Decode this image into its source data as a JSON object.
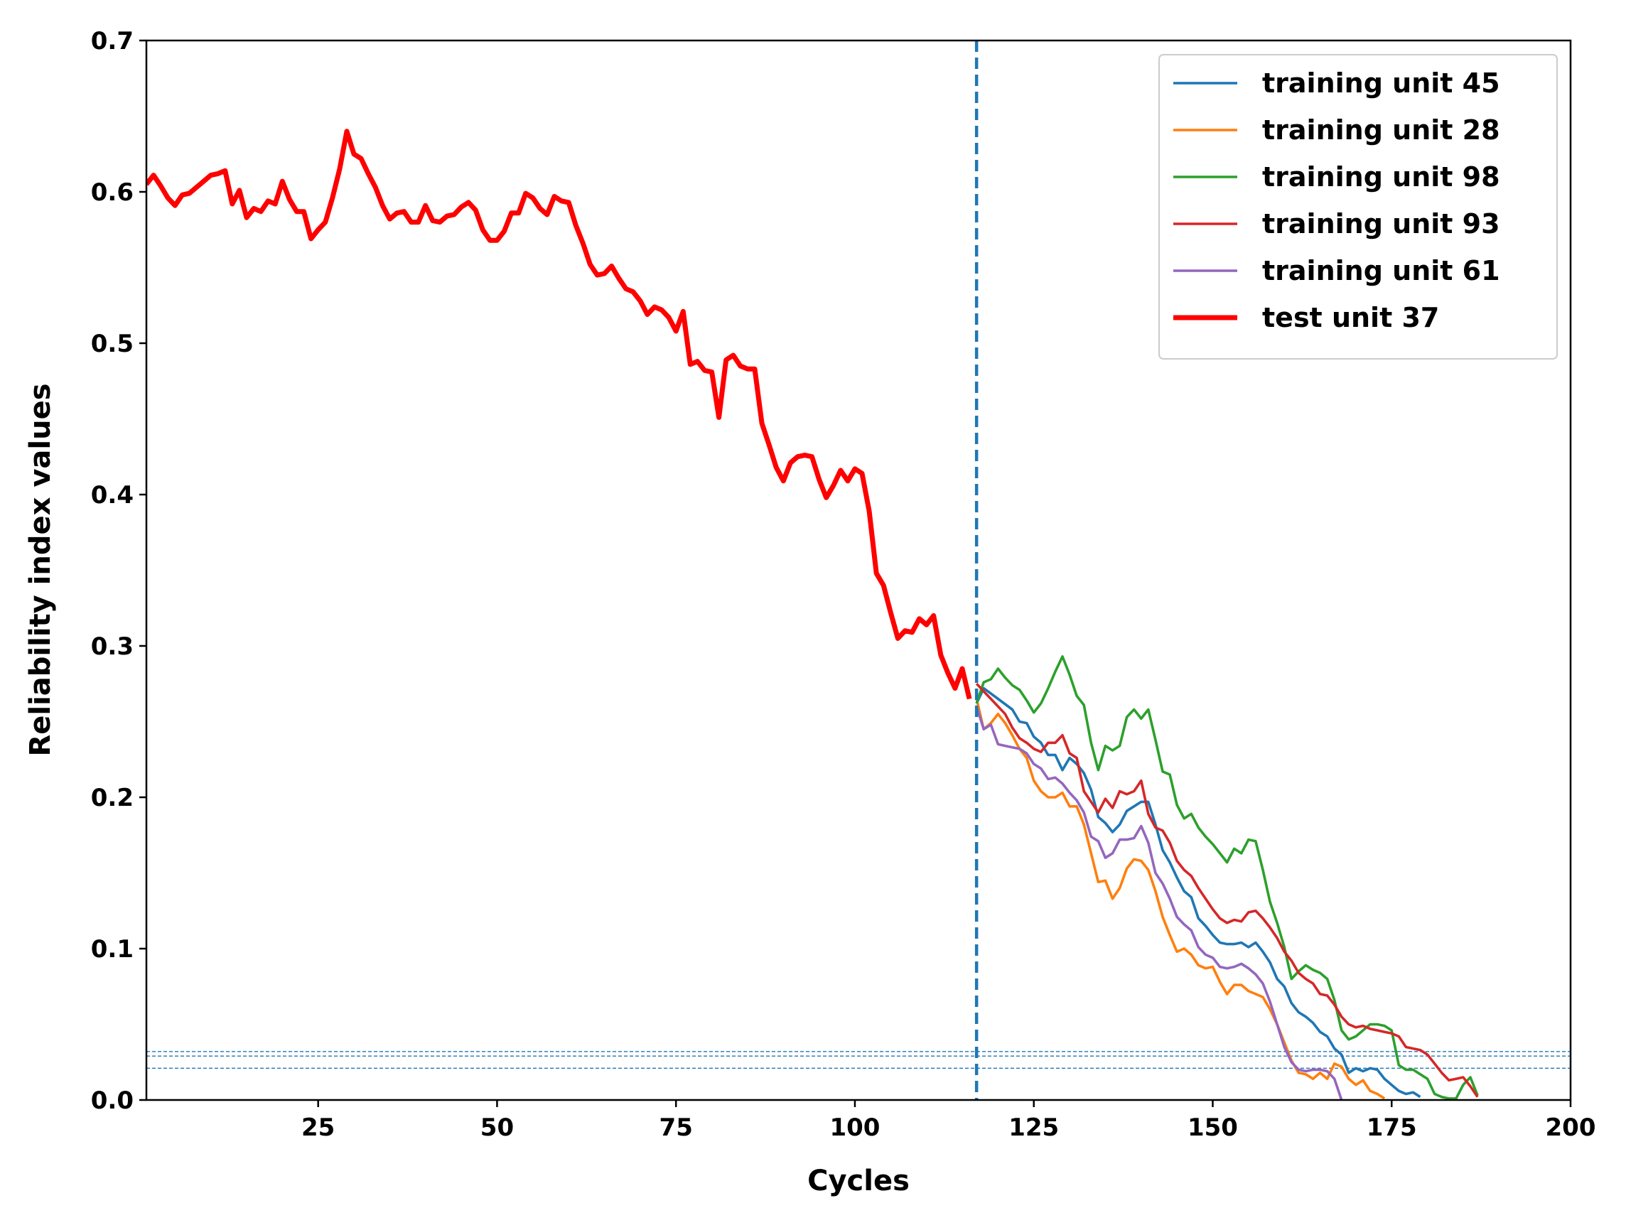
{
  "chart_data": {
    "type": "line",
    "title": "",
    "xlabel": "Cycles",
    "ylabel": "Reliability index values",
    "xlim": [
      1,
      200
    ],
    "ylim": [
      0.0,
      0.7
    ],
    "x_ticks": [
      25,
      50,
      75,
      100,
      125,
      150,
      175,
      200
    ],
    "x_tick_labels": [
      "25",
      "50",
      "75",
      "100",
      "125",
      "150",
      "175",
      "200"
    ],
    "y_ticks": [
      0.0,
      0.1,
      0.2,
      0.3,
      0.4,
      0.5,
      0.6,
      0.7
    ],
    "y_tick_labels": [
      "0.0",
      "0.1",
      "0.2",
      "0.3",
      "0.4",
      "0.5",
      "0.6",
      "0.7"
    ],
    "grid": false,
    "legend_position": "top-right",
    "vertical_line": {
      "x": 117,
      "style": "dashed",
      "color": "#1f77b4"
    },
    "threshold_lines": {
      "y": [
        0.021,
        0.029,
        0.032
      ],
      "style": "dashed",
      "color": "#1f77b4"
    },
    "series": [
      {
        "name": "training unit 45",
        "color": "#1f77b4",
        "width": "thin",
        "x": [
          117,
          118,
          120,
          122,
          123,
          124,
          125,
          126,
          127,
          128,
          129,
          130,
          131,
          132,
          133,
          134,
          135,
          136,
          137,
          138,
          139,
          140,
          141,
          142,
          143,
          144,
          145,
          146,
          147,
          148,
          149,
          150,
          151,
          152,
          153,
          154,
          155,
          156,
          157,
          158,
          159,
          160,
          161,
          162,
          163,
          164,
          165,
          166,
          167,
          168,
          169,
          170,
          171,
          172,
          173,
          174,
          175,
          176,
          177,
          178,
          179
        ],
        "values": [
          0.262,
          0.272,
          0.265,
          0.258,
          0.25,
          0.249,
          0.24,
          0.236,
          0.228,
          0.228,
          0.218,
          0.226,
          0.222,
          0.216,
          0.205,
          0.187,
          0.183,
          0.177,
          0.182,
          0.191,
          0.194,
          0.197,
          0.197,
          0.182,
          0.165,
          0.157,
          0.147,
          0.138,
          0.134,
          0.12,
          0.115,
          0.109,
          0.104,
          0.103,
          0.103,
          0.104,
          0.101,
          0.104,
          0.098,
          0.091,
          0.08,
          0.075,
          0.064,
          0.058,
          0.055,
          0.051,
          0.045,
          0.042,
          0.034,
          0.03,
          0.018,
          0.021,
          0.019,
          0.021,
          0.02,
          0.014,
          0.01,
          0.006,
          0.004,
          0.005,
          0.002
        ]
      },
      {
        "name": "training unit 28",
        "color": "#ff7f0e",
        "width": "thin",
        "x": [
          117,
          118,
          119,
          120,
          121,
          122,
          123,
          124,
          125,
          126,
          127,
          128,
          129,
          130,
          131,
          132,
          133,
          134,
          135,
          136,
          137,
          138,
          139,
          140,
          141,
          142,
          143,
          144,
          145,
          146,
          147,
          148,
          149,
          150,
          151,
          152,
          153,
          154,
          155,
          156,
          157,
          158,
          159,
          160,
          161,
          162,
          163,
          164,
          165,
          166,
          167,
          168,
          169,
          170,
          171,
          172,
          173,
          174
        ],
        "values": [
          0.265,
          0.245,
          0.249,
          0.255,
          0.249,
          0.241,
          0.232,
          0.226,
          0.211,
          0.204,
          0.2,
          0.2,
          0.203,
          0.194,
          0.194,
          0.182,
          0.163,
          0.144,
          0.145,
          0.133,
          0.14,
          0.153,
          0.159,
          0.158,
          0.152,
          0.138,
          0.121,
          0.109,
          0.098,
          0.1,
          0.096,
          0.089,
          0.087,
          0.088,
          0.078,
          0.07,
          0.076,
          0.076,
          0.072,
          0.07,
          0.068,
          0.06,
          0.05,
          0.038,
          0.026,
          0.018,
          0.017,
          0.014,
          0.018,
          0.014,
          0.024,
          0.022,
          0.014,
          0.01,
          0.013,
          0.006,
          0.004,
          0.001
        ]
      },
      {
        "name": "training unit 98",
        "color": "#2ca02c",
        "width": "thin",
        "x": [
          117,
          118,
          119,
          120,
          121,
          122,
          123,
          124,
          125,
          126,
          127,
          128,
          129,
          130,
          131,
          132,
          133,
          134,
          135,
          136,
          137,
          138,
          139,
          140,
          141,
          142,
          143,
          144,
          145,
          146,
          147,
          148,
          149,
          150,
          151,
          152,
          153,
          154,
          155,
          156,
          157,
          158,
          159,
          160,
          161,
          162,
          163,
          164,
          165,
          166,
          167,
          168,
          169,
          170,
          171,
          172,
          173,
          174,
          175,
          176,
          177,
          178,
          179,
          180,
          181,
          182,
          183,
          184,
          185,
          186,
          187
        ],
        "values": [
          0.262,
          0.276,
          0.278,
          0.285,
          0.279,
          0.274,
          0.271,
          0.264,
          0.256,
          0.262,
          0.272,
          0.283,
          0.293,
          0.281,
          0.267,
          0.261,
          0.236,
          0.218,
          0.234,
          0.231,
          0.234,
          0.253,
          0.258,
          0.252,
          0.258,
          0.238,
          0.217,
          0.215,
          0.195,
          0.186,
          0.189,
          0.18,
          0.174,
          0.169,
          0.163,
          0.157,
          0.166,
          0.163,
          0.172,
          0.171,
          0.152,
          0.131,
          0.117,
          0.101,
          0.08,
          0.085,
          0.089,
          0.086,
          0.084,
          0.08,
          0.066,
          0.046,
          0.04,
          0.042,
          0.046,
          0.05,
          0.05,
          0.049,
          0.046,
          0.023,
          0.02,
          0.02,
          0.017,
          0.014,
          0.004,
          0.002,
          0.001,
          0.001,
          0.01,
          0.015,
          0.003
        ]
      },
      {
        "name": "training unit 93",
        "color": "#d62728",
        "width": "thin",
        "x": [
          117,
          118,
          119,
          120,
          121,
          122,
          123,
          124,
          125,
          126,
          127,
          128,
          129,
          130,
          131,
          132,
          133,
          134,
          135,
          136,
          137,
          138,
          139,
          140,
          141,
          142,
          143,
          144,
          145,
          146,
          147,
          148,
          149,
          150,
          151,
          152,
          153,
          154,
          155,
          156,
          157,
          158,
          159,
          160,
          161,
          162,
          163,
          164,
          165,
          166,
          167,
          168,
          169,
          170,
          171,
          172,
          173,
          174,
          175,
          176,
          177,
          178,
          179,
          180,
          181,
          182,
          183,
          184,
          185,
          186,
          187
        ],
        "values": [
          0.275,
          0.27,
          0.265,
          0.26,
          0.255,
          0.246,
          0.239,
          0.236,
          0.232,
          0.23,
          0.236,
          0.236,
          0.241,
          0.229,
          0.226,
          0.204,
          0.197,
          0.19,
          0.199,
          0.193,
          0.204,
          0.202,
          0.204,
          0.211,
          0.189,
          0.18,
          0.178,
          0.17,
          0.158,
          0.152,
          0.148,
          0.14,
          0.133,
          0.126,
          0.12,
          0.117,
          0.119,
          0.118,
          0.124,
          0.125,
          0.12,
          0.114,
          0.107,
          0.098,
          0.092,
          0.084,
          0.08,
          0.077,
          0.07,
          0.069,
          0.063,
          0.055,
          0.05,
          0.048,
          0.049,
          0.047,
          0.046,
          0.045,
          0.044,
          0.042,
          0.035,
          0.034,
          0.033,
          0.03,
          0.024,
          0.018,
          0.013,
          0.014,
          0.015,
          0.009,
          0.002
        ]
      },
      {
        "name": "training unit 61",
        "color": "#9467bd",
        "width": "thin",
        "x": [
          117,
          118,
          119,
          120,
          121,
          122,
          123,
          124,
          125,
          126,
          127,
          128,
          129,
          130,
          131,
          132,
          133,
          134,
          135,
          136,
          137,
          138,
          139,
          140,
          141,
          142,
          143,
          144,
          145,
          146,
          147,
          148,
          149,
          150,
          151,
          152,
          153,
          154,
          155,
          156,
          157,
          158,
          159,
          160,
          161,
          162,
          163,
          164,
          165,
          166,
          167,
          168
        ],
        "values": [
          0.26,
          0.245,
          0.248,
          0.235,
          0.234,
          0.233,
          0.232,
          0.229,
          0.222,
          0.219,
          0.212,
          0.213,
          0.209,
          0.203,
          0.198,
          0.19,
          0.174,
          0.171,
          0.16,
          0.163,
          0.172,
          0.172,
          0.173,
          0.181,
          0.17,
          0.15,
          0.143,
          0.133,
          0.121,
          0.116,
          0.112,
          0.101,
          0.096,
          0.094,
          0.088,
          0.087,
          0.088,
          0.09,
          0.087,
          0.083,
          0.077,
          0.065,
          0.05,
          0.035,
          0.025,
          0.02,
          0.019,
          0.02,
          0.02,
          0.019,
          0.014,
          0.0
        ]
      },
      {
        "name": "test unit 37",
        "color": "#ff0000",
        "width": "thick",
        "x": [
          1,
          2,
          3,
          4,
          5,
          6,
          7,
          8,
          9,
          10,
          11,
          12,
          13,
          14,
          15,
          16,
          17,
          18,
          19,
          20,
          21,
          22,
          23,
          24,
          25,
          26,
          27,
          28,
          29,
          30,
          31,
          32,
          33,
          34,
          35,
          36,
          37,
          38,
          39,
          40,
          41,
          42,
          43,
          44,
          45,
          46,
          47,
          48,
          49,
          50,
          51,
          52,
          53,
          54,
          55,
          56,
          57,
          58,
          59,
          60,
          61,
          62,
          63,
          64,
          65,
          66,
          67,
          68,
          69,
          70,
          71,
          72,
          73,
          74,
          75,
          76,
          77,
          78,
          79,
          80,
          81,
          82,
          83,
          84,
          85,
          86,
          87,
          88,
          89,
          90,
          91,
          92,
          93,
          94,
          95,
          96,
          97,
          98,
          99,
          100,
          101,
          102,
          103,
          104,
          105,
          106,
          107,
          108,
          109,
          110,
          111,
          112,
          113,
          114,
          115,
          116
        ],
        "values": [
          0.605,
          0.611,
          0.604,
          0.596,
          0.591,
          0.598,
          0.599,
          0.603,
          0.607,
          0.611,
          0.612,
          0.614,
          0.592,
          0.601,
          0.583,
          0.589,
          0.587,
          0.594,
          0.592,
          0.607,
          0.595,
          0.587,
          0.587,
          0.569,
          0.575,
          0.58,
          0.596,
          0.615,
          0.64,
          0.625,
          0.622,
          0.612,
          0.603,
          0.591,
          0.582,
          0.586,
          0.587,
          0.58,
          0.58,
          0.591,
          0.581,
          0.58,
          0.584,
          0.585,
          0.59,
          0.593,
          0.588,
          0.575,
          0.568,
          0.568,
          0.574,
          0.586,
          0.586,
          0.599,
          0.596,
          0.589,
          0.585,
          0.597,
          0.594,
          0.593,
          0.578,
          0.566,
          0.552,
          0.545,
          0.546,
          0.551,
          0.543,
          0.536,
          0.534,
          0.528,
          0.519,
          0.524,
          0.522,
          0.517,
          0.508,
          0.521,
          0.486,
          0.488,
          0.482,
          0.481,
          0.451,
          0.489,
          0.492,
          0.485,
          0.483,
          0.483,
          0.447,
          0.433,
          0.418,
          0.409,
          0.421,
          0.425,
          0.426,
          0.425,
          0.41,
          0.398,
          0.406,
          0.416,
          0.409,
          0.417,
          0.414,
          0.389,
          0.348,
          0.34,
          0.322,
          0.305,
          0.31,
          0.309,
          0.318,
          0.314,
          0.32,
          0.294,
          0.282,
          0.272,
          0.285,
          0.265
        ]
      }
    ]
  }
}
